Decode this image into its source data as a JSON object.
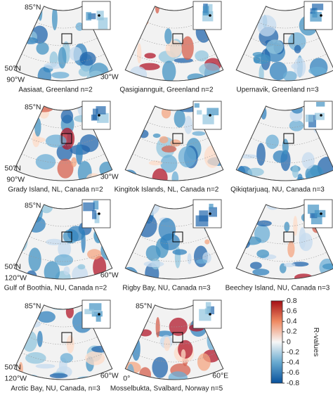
{
  "panels": [
    {
      "caption": "Aasiaat, Greenland n=2",
      "labels": {
        "top": "85°N",
        "lat": "50°N",
        "lon_left": "90°W",
        "lon_right": "30°W"
      }
    },
    {
      "caption": "Qasigiannguit, Greenland n=2"
    },
    {
      "caption": "Upernavik, Greenland n=3"
    },
    {
      "caption": "Grady Island, NL, Canada n=2",
      "labels": {
        "top": "85°N",
        "lat": "50°N",
        "lon_left": "90°W",
        "lon_right": "30°W"
      }
    },
    {
      "caption": "Kingitok Islands, NL, Canada n=2"
    },
    {
      "caption": "Qikiqtarjuaq, NU, Canada n=3"
    },
    {
      "caption": "Gulf of Boothia, NU, Canada n=2",
      "labels": {
        "top": "85°N",
        "lat": "50°N",
        "lon_left": "120°W",
        "lon_right": "60°W"
      }
    },
    {
      "caption": "Rigby Bay, NU, Canada n=3"
    },
    {
      "caption": "Beechey Island, NU, Canada n=3"
    },
    {
      "caption": "Arctic Bay, NU, Canada, n=3",
      "labels": {
        "top": "85°N",
        "lat": "50°N",
        "lon_left": "120°W",
        "lon_right": "60°W"
      }
    },
    {
      "caption": "Mosselbukta, Svalbard, Norway n=5",
      "labels": {
        "top": "85°N",
        "lon_left": "0°",
        "lon_right": "60°E"
      }
    }
  ],
  "colorbar": {
    "label": "R-values",
    "lim": [
      -0.8,
      0.8
    ],
    "ticks": [
      0.8,
      0.6,
      0.4,
      0.2,
      0,
      -0.2,
      -0.4,
      -0.6,
      -0.8
    ]
  }
}
